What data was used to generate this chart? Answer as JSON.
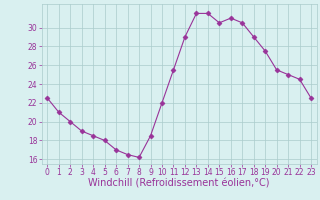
{
  "x": [
    0,
    1,
    2,
    3,
    4,
    5,
    6,
    7,
    8,
    9,
    10,
    11,
    12,
    13,
    14,
    15,
    16,
    17,
    18,
    19,
    20,
    21,
    22,
    23
  ],
  "y": [
    22.5,
    21.0,
    20.0,
    19.0,
    18.5,
    18.0,
    17.0,
    16.5,
    16.2,
    18.5,
    22.0,
    25.5,
    29.0,
    31.5,
    31.5,
    30.5,
    31.0,
    30.5,
    29.0,
    27.5,
    25.5,
    25.0,
    24.5,
    22.5
  ],
  "line_color": "#993399",
  "marker": "D",
  "marker_size": 2.5,
  "bg_color": "#d9f0f0",
  "grid_color": "#aacccc",
  "xlabel": "Windchill (Refroidissement éolien,°C)",
  "xlabel_color": "#993399",
  "xlabel_fontsize": 7,
  "tick_color": "#993399",
  "tick_fontsize": 5.5,
  "ylim": [
    15.5,
    32.5
  ],
  "yticks": [
    16,
    18,
    20,
    22,
    24,
    26,
    28,
    30
  ],
  "xlim": [
    -0.5,
    23.5
  ],
  "xticks": [
    0,
    1,
    2,
    3,
    4,
    5,
    6,
    7,
    8,
    9,
    10,
    11,
    12,
    13,
    14,
    15,
    16,
    17,
    18,
    19,
    20,
    21,
    22,
    23
  ]
}
